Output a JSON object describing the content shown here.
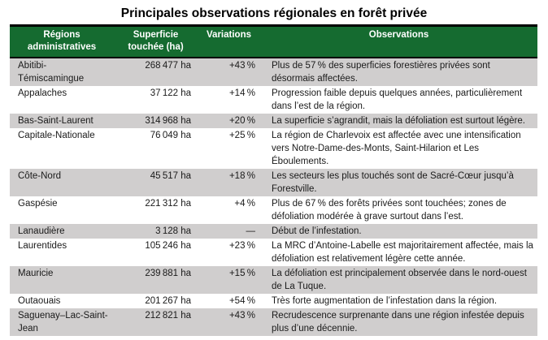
{
  "title": "Principales observations régionales en forêt privée",
  "colors": {
    "header_green": "#156b30",
    "row_stripe_gray": "#d0cece",
    "header_text": "#ffffff",
    "body_text": "#1a1a1a"
  },
  "table": {
    "headers": {
      "region": "Régions administratives",
      "superficie": "Superficie touchée (ha)",
      "variations": "Variations",
      "observations": "Observations"
    },
    "rows": [
      {
        "region": "Abitibi-Témiscamingue",
        "superficie": "268 477 ha",
        "variation": "+43 %",
        "observation": "Plus de 57 % des superficies forestières privées sont désormais affectées."
      },
      {
        "region": "Appalaches",
        "superficie": "37 122 ha",
        "variation": "+14 %",
        "observation": "Progression faible depuis quelques années, particulièrement dans l’est de la région."
      },
      {
        "region": "Bas-Saint-Laurent",
        "superficie": "314 968 ha",
        "variation": "+20 %",
        "observation": "La superficie s’agrandit, mais la défoliation est surtout légère."
      },
      {
        "region": "Capitale-Nationale",
        "superficie": "76 049 ha",
        "variation": "+25 %",
        "observation": "La région de Charlevoix est affectée avec une intensification vers Notre-Dame-des-Monts, Saint-Hilarion et Les Éboulements."
      },
      {
        "region": "Côte-Nord",
        "superficie": "45 517 ha",
        "variation": "+18 %",
        "observation": "Les secteurs les plus touchés sont de Sacré-Cœur jusqu’à Forestville."
      },
      {
        "region": "Gaspésie",
        "superficie": "221 312 ha",
        "variation": "+4 %",
        "observation": "Plus de 67 % des forêts privées sont touchées; zones de défoliation modérée à grave surtout dans l’est."
      },
      {
        "region": "Lanaudière",
        "superficie": "3 128 ha",
        "variation": "—",
        "observation": "Début de l’infestation."
      },
      {
        "region": "Laurentides",
        "superficie": "105 246 ha",
        "variation": "+23 %",
        "observation": "La MRC d’Antoine-Labelle est majoritairement affectée, mais la défoliation est relativement légère cette année."
      },
      {
        "region": "Mauricie",
        "superficie": "239 881 ha",
        "variation": "+15 %",
        "observation": "La défoliation est principalement observée dans le nord-ouest de La Tuque."
      },
      {
        "region": "Outaouais",
        "superficie": "201 267 ha",
        "variation": "+54 %",
        "observation": "Très forte augmentation de l’infestation dans la région."
      },
      {
        "region": "Saguenay–Lac-Saint-Jean",
        "superficie": "212 821 ha",
        "variation": "+43 %",
        "observation": "Recrudescence surprenante dans une région infestée depuis plus d’une décennie."
      }
    ]
  }
}
